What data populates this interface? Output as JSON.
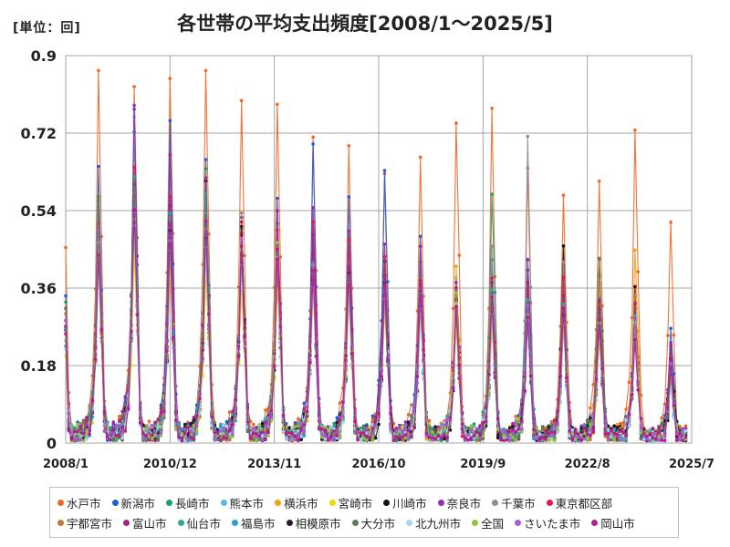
{
  "unit_label": "[単位：回]",
  "chart_data": {
    "type": "line",
    "title": "各世帯の平均支出頻度[2008/1～2025/5]",
    "ylim": [
      0,
      0.9
    ],
    "y_ticks": [
      "0",
      "0.18",
      "0.36",
      "0.54",
      "0.72",
      "0.9"
    ],
    "x_ticks": [
      "2008/1",
      "2010/12",
      "2013/11",
      "2016/10",
      "2019/9",
      "2022/8",
      "2025/7"
    ],
    "x_start": "2008/1",
    "x_end": "2025/7",
    "grid": true,
    "legend_position": "bottom",
    "series": [
      {
        "name": "水戸市",
        "color": "#f26522",
        "peaks": [
          0.86,
          0.82,
          0.87,
          0.89,
          0.79,
          0.79,
          0.7,
          0.67,
          0.61,
          0.64,
          0.75,
          0.75,
          0.61,
          0.55,
          0.61,
          0.71,
          0.5
        ]
      },
      {
        "name": "新潟市",
        "color": "#1f5fd6",
        "peaks": [
          0.65,
          0.8,
          0.77,
          0.64,
          0.55,
          0.54,
          0.7,
          0.57,
          0.66,
          0.48,
          0.36,
          0.4,
          0.42,
          0.37,
          0.3,
          0.32,
          0.26
        ]
      },
      {
        "name": "長崎市",
        "color": "#1aa06b",
        "peaks": [
          0.55,
          0.72,
          0.47,
          0.62,
          0.5,
          0.49,
          0.46,
          0.44,
          0.43,
          0.41,
          0.37,
          0.6,
          0.4,
          0.35,
          0.42,
          0.3,
          0.21
        ]
      },
      {
        "name": "熊本市",
        "color": "#5ab8e6",
        "peaks": [
          0.47,
          0.74,
          0.55,
          0.44,
          0.47,
          0.52,
          0.41,
          0.42,
          0.39,
          0.35,
          0.36,
          0.32,
          0.34,
          0.3,
          0.35,
          0.31,
          0.19
        ]
      },
      {
        "name": "横浜市",
        "color": "#f0a30a",
        "peaks": [
          0.45,
          0.48,
          0.4,
          0.47,
          0.44,
          0.4,
          0.43,
          0.35,
          0.38,
          0.32,
          0.41,
          0.36,
          0.35,
          0.33,
          0.4,
          0.44,
          0.2
        ]
      },
      {
        "name": "宮崎市",
        "color": "#f5d800",
        "peaks": [
          0.41,
          0.45,
          0.43,
          0.4,
          0.38,
          0.39,
          0.36,
          0.33,
          0.31,
          0.3,
          0.29,
          0.28,
          0.3,
          0.27,
          0.26,
          0.28,
          0.15
        ]
      },
      {
        "name": "川崎市",
        "color": "#111111",
        "peaks": [
          0.52,
          0.6,
          0.49,
          0.58,
          0.46,
          0.44,
          0.41,
          0.38,
          0.37,
          0.33,
          0.33,
          0.34,
          0.31,
          0.44,
          0.29,
          0.34,
          0.22
        ]
      },
      {
        "name": "奈良市",
        "color": "#8e2fb3",
        "peaks": [
          0.51,
          0.78,
          0.66,
          0.64,
          0.5,
          0.55,
          0.55,
          0.5,
          0.48,
          0.48,
          0.38,
          0.36,
          0.41,
          0.37,
          0.35,
          0.31,
          0.24
        ]
      },
      {
        "name": "千葉市",
        "color": "#8c8c9e",
        "peaks": [
          0.52,
          0.58,
          0.5,
          0.55,
          0.51,
          0.46,
          0.44,
          0.42,
          0.44,
          0.36,
          0.34,
          0.44,
          0.69,
          0.4,
          0.43,
          0.33,
          0.18
        ]
      },
      {
        "name": "東京都区部",
        "color": "#e6155a",
        "peaks": [
          0.54,
          0.62,
          0.56,
          0.52,
          0.49,
          0.51,
          0.54,
          0.45,
          0.41,
          0.4,
          0.35,
          0.37,
          0.33,
          0.36,
          0.31,
          0.3,
          0.2
        ]
      },
      {
        "name": "宇都宮市",
        "color": "#c07a30",
        "peaks": [
          0.48,
          0.55,
          0.52,
          0.5,
          0.46,
          0.47,
          0.43,
          0.41,
          0.39,
          0.37,
          0.34,
          0.33,
          0.32,
          0.31,
          0.33,
          0.32,
          0.17
        ]
      },
      {
        "name": "富山市",
        "color": "#a0237e",
        "peaks": [
          0.5,
          0.57,
          0.54,
          0.53,
          0.5,
          0.47,
          0.46,
          0.43,
          0.42,
          0.39,
          0.37,
          0.35,
          0.36,
          0.32,
          0.31,
          0.3,
          0.21
        ]
      },
      {
        "name": "仙台市",
        "color": "#27ae90",
        "peaks": [
          0.49,
          0.63,
          0.51,
          0.61,
          0.45,
          0.46,
          0.42,
          0.4,
          0.38,
          0.36,
          0.33,
          0.34,
          0.35,
          0.3,
          0.29,
          0.29,
          0.16
        ]
      },
      {
        "name": "福島市",
        "color": "#2b9fc9",
        "peaks": [
          0.46,
          0.56,
          0.48,
          0.49,
          0.44,
          0.43,
          0.41,
          0.38,
          0.36,
          0.34,
          0.31,
          0.31,
          0.3,
          0.28,
          0.28,
          0.27,
          0.15
        ]
      },
      {
        "name": "相模原市",
        "color": "#2a1a2e",
        "peaks": [
          0.47,
          0.53,
          0.47,
          0.48,
          0.48,
          0.44,
          0.4,
          0.37,
          0.36,
          0.33,
          0.32,
          0.33,
          0.29,
          0.3,
          0.3,
          0.28,
          0.17
        ]
      },
      {
        "name": "大分市",
        "color": "#5c7a5c",
        "peaks": [
          0.59,
          0.62,
          0.46,
          0.5,
          0.43,
          0.45,
          0.39,
          0.39,
          0.37,
          0.32,
          0.3,
          0.3,
          0.31,
          0.29,
          0.43,
          0.27,
          0.18
        ]
      },
      {
        "name": "北九州市",
        "color": "#9fd8f5",
        "peaks": [
          0.44,
          0.51,
          0.45,
          0.45,
          0.42,
          0.41,
          0.38,
          0.36,
          0.34,
          0.31,
          0.3,
          0.29,
          0.28,
          0.27,
          0.27,
          0.26,
          0.14
        ]
      },
      {
        "name": "全国",
        "color": "#8cc63f",
        "peaks": [
          0.46,
          0.54,
          0.47,
          0.49,
          0.45,
          0.44,
          0.41,
          0.38,
          0.36,
          0.34,
          0.32,
          0.32,
          0.31,
          0.29,
          0.29,
          0.28,
          0.16
        ]
      },
      {
        "name": "さいたま市",
        "color": "#a65dd6",
        "peaks": [
          0.48,
          0.55,
          0.51,
          0.49,
          0.46,
          0.44,
          0.42,
          0.4,
          0.37,
          0.34,
          0.33,
          0.33,
          0.32,
          0.3,
          0.29,
          0.28,
          0.17
        ]
      },
      {
        "name": "岡山市",
        "color": "#b51f8c",
        "peaks": [
          0.45,
          0.52,
          0.48,
          0.51,
          0.44,
          0.46,
          0.4,
          0.39,
          0.37,
          0.35,
          0.31,
          0.32,
          0.3,
          0.29,
          0.3,
          0.27,
          0.18
        ]
      }
    ]
  }
}
